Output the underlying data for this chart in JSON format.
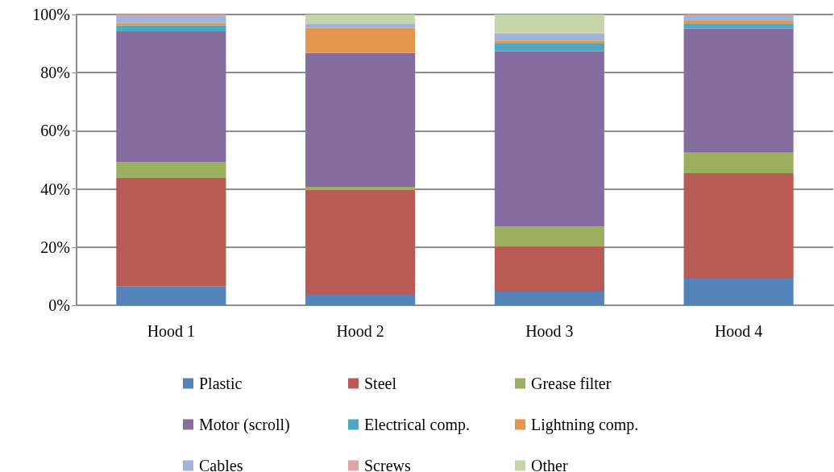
{
  "chart_data": {
    "type": "bar",
    "stacked": true,
    "categories": [
      "Hood 1",
      "Hood 2",
      "Hood 3",
      "Hood 4"
    ],
    "series": [
      {
        "name": "Plastic",
        "color": "#5383b8",
        "values": [
          6.6,
          3.6,
          4.7,
          9.4
        ]
      },
      {
        "name": "Steel",
        "color": "#b95b55",
        "values": [
          37.2,
          36.0,
          15.5,
          36.0
        ]
      },
      {
        "name": "Grease filter",
        "color": "#9bb05f",
        "values": [
          5.5,
          1.1,
          6.9,
          7.2
        ]
      },
      {
        "name": "Motor (scroll)",
        "color": "#866da0",
        "values": [
          44.9,
          46.1,
          60.2,
          42.5
        ]
      },
      {
        "name": "Electrical comp.",
        "color": "#4fa8c0",
        "values": [
          2.0,
          0,
          2.7,
          1.6
        ]
      },
      {
        "name": "Lightning comp.",
        "color": "#e3964e",
        "values": [
          0.9,
          8.6,
          1.1,
          1.1
        ]
      },
      {
        "name": "Cables",
        "color": "#a0b4d8",
        "values": [
          2.6,
          1.5,
          2.3,
          1.9
        ]
      },
      {
        "name": "Screws",
        "color": "#dca5a4",
        "values": [
          0.3,
          null,
          0.4,
          0.3
        ]
      },
      {
        "name": "Other",
        "color": "#c5d6a8",
        "values": [
          0,
          3.1,
          6.2,
          0
        ]
      }
    ],
    "ylim": [
      0,
      100
    ],
    "yticks": [
      {
        "value": 0,
        "label": "0%"
      },
      {
        "value": 20,
        "label": "20%"
      },
      {
        "value": 40,
        "label": "40%"
      },
      {
        "value": 60,
        "label": "60%"
      },
      {
        "value": 80,
        "label": "80%"
      },
      {
        "value": 100,
        "label": "100%"
      }
    ],
    "grid": "y",
    "legend": "bottom"
  }
}
